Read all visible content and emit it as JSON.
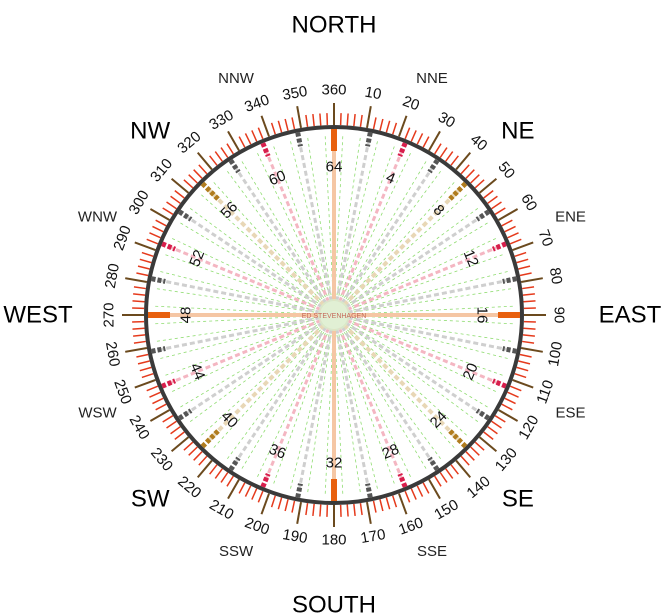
{
  "rose": {
    "cardinals": [
      {
        "label": "NORTH",
        "bearing": 0
      },
      {
        "label": "EAST",
        "bearing": 90
      },
      {
        "label": "SOUTH",
        "bearing": 180
      },
      {
        "label": "WEST",
        "bearing": 270
      }
    ],
    "intercardinals": [
      {
        "label": "NE",
        "bearing": 45
      },
      {
        "label": "SE",
        "bearing": 135
      },
      {
        "label": "SW",
        "bearing": 225
      },
      {
        "label": "NW",
        "bearing": 315
      }
    ],
    "secondary_winds": [
      {
        "label": "NNE",
        "bearing": 22.5
      },
      {
        "label": "ENE",
        "bearing": 67.5
      },
      {
        "label": "ESE",
        "bearing": 112.5
      },
      {
        "label": "SSE",
        "bearing": 157.5
      },
      {
        "label": "SSW",
        "bearing": 202.5
      },
      {
        "label": "WSW",
        "bearing": 247.5
      },
      {
        "label": "WNW",
        "bearing": 292.5
      },
      {
        "label": "NNW",
        "bearing": 337.5
      }
    ],
    "degree_labels": [
      "360",
      "10",
      "20",
      "30",
      "40",
      "50",
      "60",
      "70",
      "80",
      "90",
      "100",
      "110",
      "120",
      "130",
      "140",
      "150",
      "160",
      "170",
      "180",
      "190",
      "200",
      "210",
      "220",
      "230",
      "240",
      "250",
      "260",
      "270",
      "280",
      "290",
      "300",
      "310",
      "320",
      "330",
      "340",
      "350"
    ],
    "point_labels": [
      "64",
      "4",
      "8",
      "12",
      "16",
      "20",
      "24",
      "28",
      "32",
      "36",
      "40",
      "44",
      "48",
      "52",
      "56",
      "60"
    ],
    "credit": "ED STEVENHAGEN",
    "colors": {
      "tick": "#e53a1c",
      "major_tick": "#6b4a1e",
      "ring": "#3a3a3a",
      "cardinal_ray": "#f5c6a4",
      "cardinal_marker": "#e8600e",
      "intercardinal_ray": "#e8d7b6",
      "intercardinal_marker": "#b07c1e",
      "red_ray": "#f4b6c2",
      "red_marker": "#d81e4c",
      "gray_ray": "#cfcfcf",
      "gray_marker": "#555555",
      "green_ray": "#8fdc70",
      "hub": "#d9ecc9"
    }
  }
}
